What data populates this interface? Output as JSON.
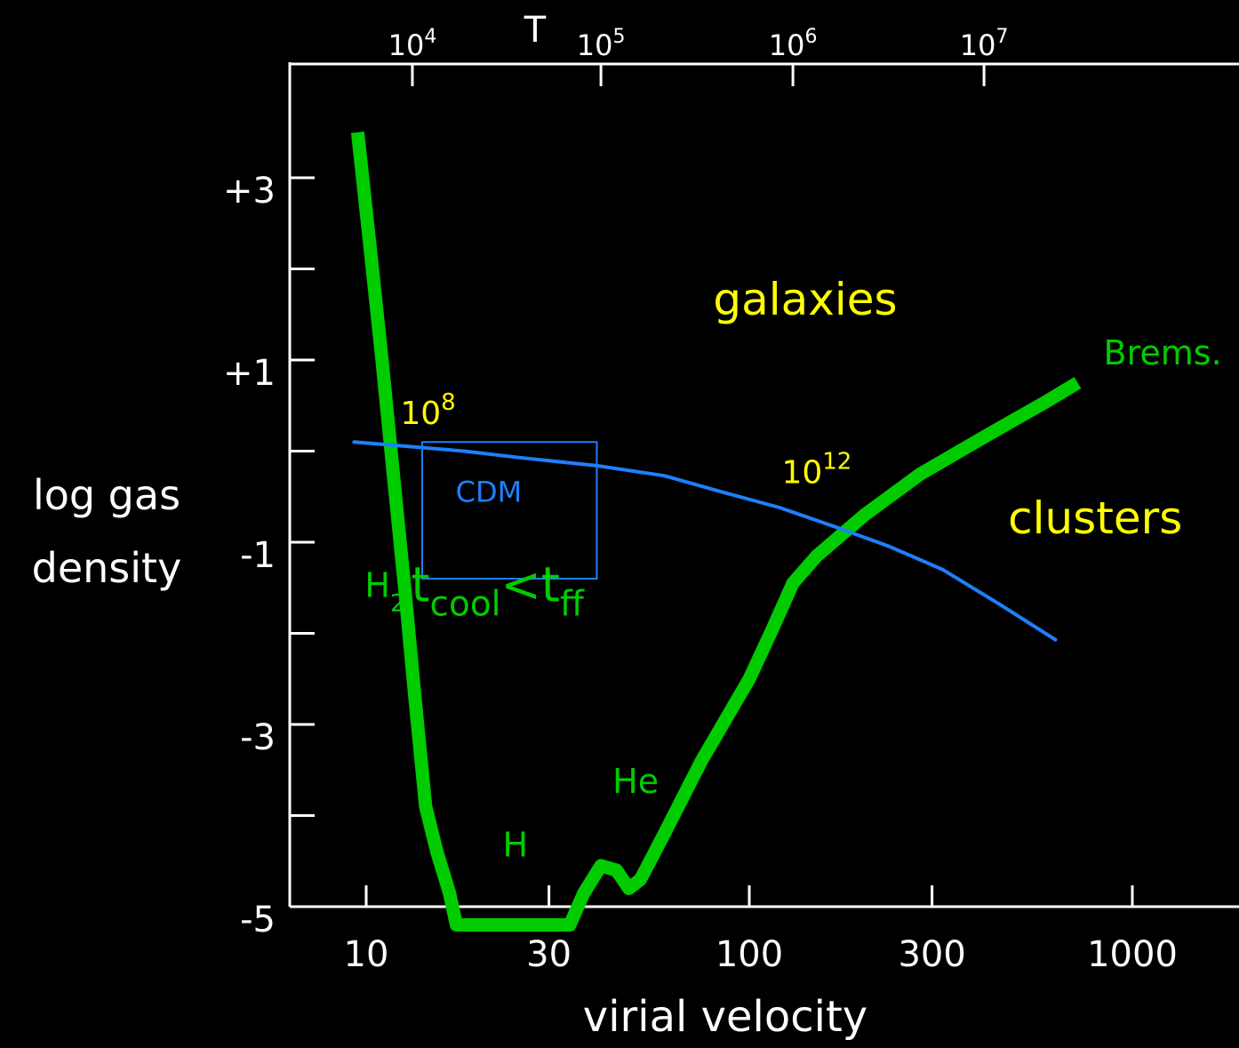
{
  "chart_data": {
    "type": "line",
    "xlabel": "virial velocity",
    "ylabel_lines": [
      "log gas",
      "density"
    ],
    "x_scale": "log",
    "xlim": [
      8,
      1400
    ],
    "ylim": [
      -5,
      4
    ],
    "x_ticks": [
      {
        "value": 10,
        "label": "10"
      },
      {
        "value": 30,
        "label": "30"
      },
      {
        "value": 100,
        "label": "100"
      },
      {
        "value": 300,
        "label": "300"
      },
      {
        "value": 1000,
        "label": "1000"
      }
    ],
    "y_ticks": [
      {
        "value": -5,
        "label": "-5"
      },
      {
        "value": -4,
        "label": ""
      },
      {
        "value": -3,
        "label": "-3"
      },
      {
        "value": -2,
        "label": ""
      },
      {
        "value": -1,
        "label": "-1"
      },
      {
        "value": 0,
        "label": ""
      },
      {
        "value": 1,
        "label": "+1"
      },
      {
        "value": 2,
        "label": ""
      },
      {
        "value": 3,
        "label": "+3"
      }
    ],
    "top_axis": {
      "label": "T",
      "ticks": [
        {
          "velocity": 13.2,
          "base": "10",
          "exp": "4"
        },
        {
          "velocity": 41,
          "base": "10",
          "exp": "5"
        },
        {
          "velocity": 130,
          "base": "10",
          "exp": "6"
        },
        {
          "velocity": 410,
          "base": "10",
          "exp": "7"
        }
      ]
    },
    "series": [
      {
        "key": "cooling",
        "color": "#00cc00",
        "points": [
          [
            9.5,
            3.5
          ],
          [
            10.2,
            2.3
          ],
          [
            11.0,
            1.0
          ],
          [
            11.8,
            -0.3
          ],
          [
            12.6,
            -1.5
          ],
          [
            13.4,
            -2.7
          ],
          [
            14.3,
            -3.9
          ],
          [
            15.3,
            -4.4
          ],
          [
            16.5,
            -4.85
          ],
          [
            17.2,
            -5.2
          ],
          [
            34,
            -5.2
          ],
          [
            37,
            -4.85
          ],
          [
            41,
            -4.55
          ],
          [
            45,
            -4.6
          ],
          [
            48.5,
            -4.8
          ],
          [
            52,
            -4.7
          ],
          [
            60,
            -4.2
          ],
          [
            75,
            -3.4
          ],
          [
            100,
            -2.5
          ],
          [
            115,
            -1.95
          ],
          [
            130,
            -1.45
          ],
          [
            150,
            -1.15
          ],
          [
            200,
            -0.7
          ],
          [
            280,
            -0.25
          ],
          [
            420,
            0.18
          ],
          [
            600,
            0.55
          ],
          [
            720,
            0.75
          ]
        ]
      },
      {
        "key": "cdm",
        "color": "#1e7fff",
        "points": [
          [
            9.3,
            0.1
          ],
          [
            13,
            0.05
          ],
          [
            18,
            0.0
          ],
          [
            25,
            -0.07
          ],
          [
            40,
            -0.16
          ],
          [
            60,
            -0.27
          ],
          [
            85,
            -0.45
          ],
          [
            120,
            -0.62
          ],
          [
            170,
            -0.84
          ],
          [
            230,
            -1.04
          ],
          [
            320,
            -1.3
          ],
          [
            450,
            -1.68
          ],
          [
            630,
            -2.07
          ]
        ]
      }
    ],
    "annotations": [
      {
        "key": "h2",
        "text": "H",
        "sub": "2",
        "color": "#00cc00",
        "x": 11.2,
        "y": -1.6
      },
      {
        "key": "h",
        "text": "H",
        "color": "#00cc00",
        "x": 24.5,
        "y": -4.45
      },
      {
        "key": "he",
        "text": "He",
        "color": "#00cc00",
        "x": 50.5,
        "y": -3.75
      },
      {
        "key": "brems",
        "text": "Brems.",
        "color": "#00cc00",
        "x": 1200,
        "y": 0.95
      },
      {
        "key": "galaxies",
        "text": "galaxies",
        "color": "#ffff00",
        "x": 140,
        "y": 1.5
      },
      {
        "key": "clusters",
        "text": "clusters",
        "color": "#ffff00",
        "x": 800,
        "y": -0.9
      },
      {
        "key": "m8",
        "base": "10",
        "exp": "8",
        "color": "#ffff00",
        "x": 14.5,
        "y": 0.3
      },
      {
        "key": "m12",
        "base": "10",
        "exp": "12",
        "color": "#ffff00",
        "x": 150,
        "y": -0.35
      },
      {
        "key": "tcool",
        "text": "t",
        "sub": "cool",
        "mid": "<t",
        "sub2": "ff",
        "color": "#00cc00",
        "x": 22,
        "y": -1.65
      }
    ],
    "cdm_box": {
      "label": "CDM",
      "color": "#1e7fff",
      "x_range": [
        14,
        40
      ],
      "y_range": [
        -1.4,
        0.1
      ]
    },
    "colors": {
      "background": "#000000",
      "axes": "#ffffff",
      "label_text": "#ffffff"
    }
  }
}
